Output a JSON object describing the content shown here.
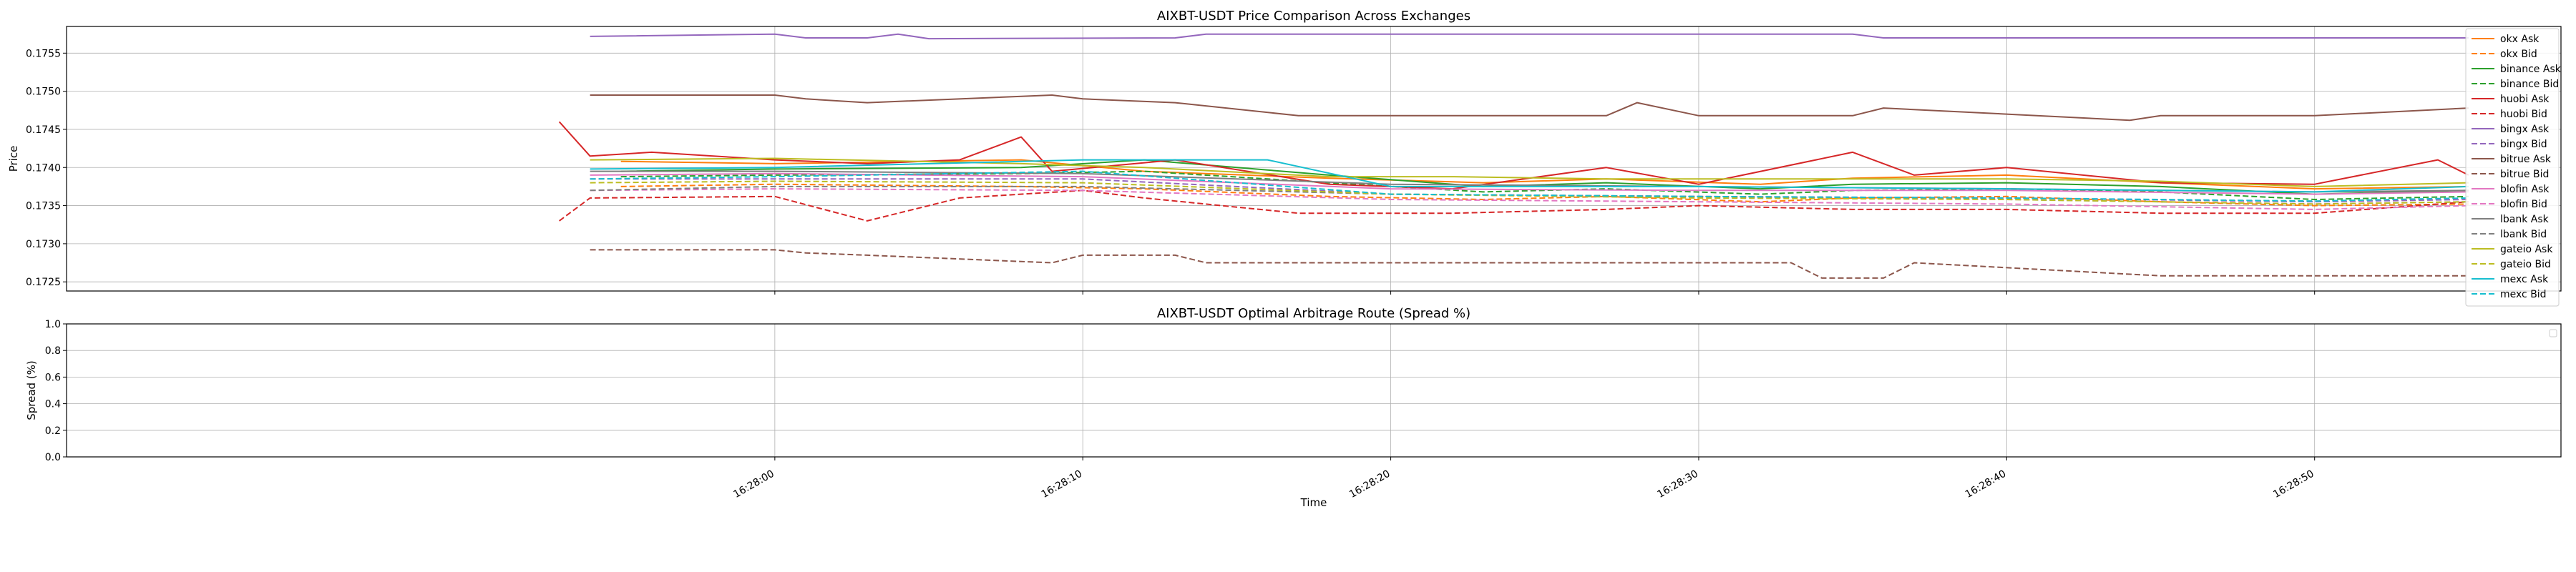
{
  "chart_data": [
    {
      "type": "line",
      "title": "AIXBT-USDT Price Comparison Across Exchanges",
      "xlabel": "",
      "ylabel": "Price",
      "ylim": [
        0.17238,
        0.17585
      ],
      "yticks": [
        "0.1725",
        "0.1730",
        "0.1735",
        "0.1740",
        "0.1745",
        "0.1750",
        "0.1755"
      ],
      "grid": true,
      "legend_position": "right, outside",
      "series": [
        {
          "name": "okx Ask",
          "color": "#ff7f0e",
          "dash": "solid",
          "x": [
            "16:27:55",
            "16:28:00",
            "16:28:08",
            "16:28:12",
            "16:28:18",
            "16:28:23",
            "16:28:27",
            "16:28:32",
            "16:28:35",
            "16:28:40",
            "16:28:45",
            "16:28:50",
            "16:28:55"
          ],
          "values": [
            0.17408,
            0.17405,
            0.1741,
            0.17395,
            0.17386,
            0.1738,
            0.17385,
            0.17378,
            0.17386,
            0.1739,
            0.1738,
            0.17372,
            0.17375
          ]
        },
        {
          "name": "okx Bid",
          "color": "#ff7f0e",
          "dash": "dashed",
          "x": [
            "16:27:55",
            "16:28:00",
            "16:28:08",
            "16:28:12",
            "16:28:18",
            "16:28:23",
            "16:28:27",
            "16:28:32",
            "16:28:35",
            "16:28:40",
            "16:28:45",
            "16:28:50",
            "16:28:55"
          ],
          "values": [
            0.17375,
            0.17378,
            0.17375,
            0.17372,
            0.17362,
            0.17358,
            0.17362,
            0.17355,
            0.1736,
            0.17362,
            0.17355,
            0.1735,
            0.17352
          ]
        },
        {
          "name": "binance Ask",
          "color": "#2ca02c",
          "dash": "solid",
          "x": [
            "16:27:55",
            "16:28:00",
            "16:28:08",
            "16:28:12",
            "16:28:18",
            "16:28:23",
            "16:28:27",
            "16:28:32",
            "16:28:35",
            "16:28:40",
            "16:28:45",
            "16:28:50",
            "16:28:55"
          ],
          "values": [
            0.17395,
            0.17398,
            0.174,
            0.1741,
            0.1739,
            0.17375,
            0.1738,
            0.17372,
            0.17378,
            0.1738,
            0.17375,
            0.17365,
            0.1737
          ]
        },
        {
          "name": "binance Bid",
          "color": "#2ca02c",
          "dash": "dashed",
          "x": [
            "16:27:55",
            "16:28:00",
            "16:28:08",
            "16:28:12",
            "16:28:18",
            "16:28:23",
            "16:28:27",
            "16:28:32",
            "16:28:35",
            "16:28:40",
            "16:28:45",
            "16:28:50",
            "16:28:55"
          ],
          "values": [
            0.17388,
            0.1739,
            0.17392,
            0.17395,
            0.1738,
            0.17368,
            0.17372,
            0.17365,
            0.1737,
            0.17372,
            0.17368,
            0.17358,
            0.17362
          ]
        },
        {
          "name": "huobi Ask",
          "color": "#d62728",
          "dash": "solid",
          "x": [
            "16:27:53",
            "16:27:54",
            "16:27:56",
            "16:28:00",
            "16:28:03",
            "16:28:06",
            "16:28:08",
            "16:28:09",
            "16:28:13",
            "16:28:18",
            "16:28:22",
            "16:28:27",
            "16:28:30",
            "16:28:35",
            "16:28:37",
            "16:28:40",
            "16:28:45",
            "16:28:50",
            "16:28:54",
            "16:28:55"
          ],
          "values": [
            0.1746,
            0.17415,
            0.1742,
            0.1741,
            0.17405,
            0.1741,
            0.1744,
            0.17395,
            0.1741,
            0.17378,
            0.17372,
            0.174,
            0.17378,
            0.1742,
            0.1739,
            0.174,
            0.1738,
            0.17378,
            0.1741,
            0.1739
          ]
        },
        {
          "name": "huobi Bid",
          "color": "#d62728",
          "dash": "dashed",
          "x": [
            "16:27:53",
            "16:27:54",
            "16:28:00",
            "16:28:03",
            "16:28:06",
            "16:28:10",
            "16:28:12",
            "16:28:17",
            "16:28:22",
            "16:28:27",
            "16:28:30",
            "16:28:35",
            "16:28:40",
            "16:28:45",
            "16:28:50",
            "16:28:55"
          ],
          "values": [
            0.1733,
            0.1736,
            0.17362,
            0.1733,
            0.1736,
            0.1737,
            0.1736,
            0.1734,
            0.1734,
            0.17345,
            0.1735,
            0.17345,
            0.17345,
            0.1734,
            0.1734,
            0.17355
          ]
        },
        {
          "name": "bingx Ask",
          "color": "#9467bd",
          "dash": "solid",
          "x": [
            "16:27:54",
            "16:28:00",
            "16:28:01",
            "16:28:03",
            "16:28:04",
            "16:28:05",
            "16:28:13",
            "16:28:14",
            "16:28:35",
            "16:28:36",
            "16:28:55"
          ],
          "values": [
            0.17572,
            0.17575,
            0.1757,
            0.1757,
            0.17575,
            0.17569,
            0.1757,
            0.17575,
            0.17575,
            0.1757,
            0.1757
          ]
        },
        {
          "name": "bingx Bid",
          "color": "#9467bd",
          "dash": "dashed",
          "x": [
            "16:27:54",
            "16:28:00",
            "16:28:10",
            "16:28:20",
            "16:28:30",
            "16:28:40",
            "16:28:50",
            "16:28:55"
          ],
          "values": [
            0.17385,
            0.17385,
            0.17385,
            0.17365,
            0.17362,
            0.1736,
            0.17355,
            0.17358
          ]
        },
        {
          "name": "bitrue Ask",
          "color": "#8c564b",
          "dash": "solid",
          "x": [
            "16:27:54",
            "16:28:00",
            "16:28:01",
            "16:28:03",
            "16:28:09",
            "16:28:10",
            "16:28:13",
            "16:28:17",
            "16:28:27",
            "16:28:28",
            "16:28:30",
            "16:28:35",
            "16:28:36",
            "16:28:44",
            "16:28:45",
            "16:28:50",
            "16:28:55"
          ],
          "values": [
            0.17495,
            0.17495,
            0.1749,
            0.17485,
            0.17495,
            0.1749,
            0.17485,
            0.17468,
            0.17468,
            0.17485,
            0.17468,
            0.17468,
            0.17478,
            0.17462,
            0.17468,
            0.17468,
            0.17478
          ]
        },
        {
          "name": "bitrue Bid",
          "color": "#8c564b",
          "dash": "dashed",
          "x": [
            "16:27:54",
            "16:28:00",
            "16:28:01",
            "16:28:03",
            "16:28:09",
            "16:28:10",
            "16:28:13",
            "16:28:14",
            "16:28:33",
            "16:28:34",
            "16:28:36",
            "16:28:37",
            "16:28:44",
            "16:28:45",
            "16:28:55"
          ],
          "values": [
            0.17292,
            0.17292,
            0.17288,
            0.17285,
            0.17275,
            0.17285,
            0.17285,
            0.17275,
            0.17275,
            0.17255,
            0.17255,
            0.17275,
            0.1726,
            0.17258,
            0.17258
          ]
        },
        {
          "name": "blofin Ask",
          "color": "#e377c2",
          "dash": "solid",
          "x": [
            "16:27:54",
            "16:28:00",
            "16:28:10",
            "16:28:20",
            "16:28:30",
            "16:28:40",
            "16:28:50",
            "16:28:55"
          ],
          "values": [
            0.1739,
            0.17392,
            0.17388,
            0.17372,
            0.1737,
            0.1737,
            0.17365,
            0.17368
          ]
        },
        {
          "name": "blofin Bid",
          "color": "#e377c2",
          "dash": "dashed",
          "x": [
            "16:27:54",
            "16:28:00",
            "16:28:10",
            "16:28:20",
            "16:28:30",
            "16:28:40",
            "16:28:50",
            "16:28:55"
          ],
          "values": [
            0.1737,
            0.17372,
            0.1737,
            0.17358,
            0.17355,
            0.17352,
            0.17345,
            0.1735
          ]
        },
        {
          "name": "lbank Ask",
          "color": "#7f7f7f",
          "dash": "solid",
          "x": [
            "16:27:54",
            "16:28:00",
            "16:28:10",
            "16:28:20",
            "16:28:30",
            "16:28:40",
            "16:28:50",
            "16:28:55"
          ],
          "values": [
            0.17395,
            0.17395,
            0.17392,
            0.17378,
            0.17375,
            0.17372,
            0.17368,
            0.1737
          ]
        },
        {
          "name": "lbank Bid",
          "color": "#7f7f7f",
          "dash": "dashed",
          "x": [
            "16:27:54",
            "16:28:00",
            "16:28:10",
            "16:28:20",
            "16:28:30",
            "16:28:40",
            "16:28:50",
            "16:28:55"
          ],
          "values": [
            0.1737,
            0.17375,
            0.17375,
            0.17365,
            0.17362,
            0.17358,
            0.17352,
            0.17355
          ]
        },
        {
          "name": "gateio Ask",
          "color": "#bcbd22",
          "dash": "solid",
          "x": [
            "16:27:54",
            "16:28:00",
            "16:28:08",
            "16:28:12",
            "16:28:18",
            "16:28:22",
            "16:28:27",
            "16:28:32",
            "16:28:40",
            "16:28:45",
            "16:28:50",
            "16:28:55"
          ],
          "values": [
            0.1741,
            0.17412,
            0.17405,
            0.174,
            0.17388,
            0.17388,
            0.17385,
            0.17385,
            0.17385,
            0.17382,
            0.17375,
            0.1738
          ]
        },
        {
          "name": "gateio Bid",
          "color": "#bcbd22",
          "dash": "dashed",
          "x": [
            "16:27:54",
            "16:28:00",
            "16:28:10",
            "16:28:20",
            "16:28:30",
            "16:28:40",
            "16:28:50",
            "16:28:55"
          ],
          "values": [
            0.1738,
            0.17382,
            0.1738,
            0.17365,
            0.1736,
            0.17358,
            0.17352,
            0.17355
          ]
        },
        {
          "name": "mexc Ask",
          "color": "#17becf",
          "dash": "solid",
          "x": [
            "16:27:54",
            "16:28:00",
            "16:28:10",
            "16:28:16",
            "16:28:20",
            "16:28:30",
            "16:28:40",
            "16:28:50",
            "16:28:55"
          ],
          "values": [
            0.17398,
            0.174,
            0.1741,
            0.1741,
            0.17375,
            0.17375,
            0.17372,
            0.17368,
            0.17375
          ]
        },
        {
          "name": "mexc Bid",
          "color": "#17becf",
          "dash": "dashed",
          "x": [
            "16:27:54",
            "16:28:00",
            "16:28:10",
            "16:28:20",
            "16:28:30",
            "16:28:40",
            "16:28:50",
            "16:28:55"
          ],
          "values": [
            0.17385,
            0.17388,
            0.17395,
            0.17365,
            0.17362,
            0.1736,
            0.17356,
            0.1736
          ]
        }
      ]
    },
    {
      "type": "line",
      "title": "AIXBT-USDT Optimal Arbitrage Route (Spread %)",
      "xlabel": "Time",
      "ylabel": "Spread (%)",
      "ylim": [
        0.0,
        1.0
      ],
      "yticks": [
        "0.0",
        "0.2",
        "0.4",
        "0.6",
        "0.8",
        "1.0"
      ],
      "xticks": [
        "16:28:00",
        "16:28:10",
        "16:28:20",
        "16:28:30",
        "16:28:40",
        "16:28:50"
      ],
      "grid": true,
      "series": []
    }
  ]
}
